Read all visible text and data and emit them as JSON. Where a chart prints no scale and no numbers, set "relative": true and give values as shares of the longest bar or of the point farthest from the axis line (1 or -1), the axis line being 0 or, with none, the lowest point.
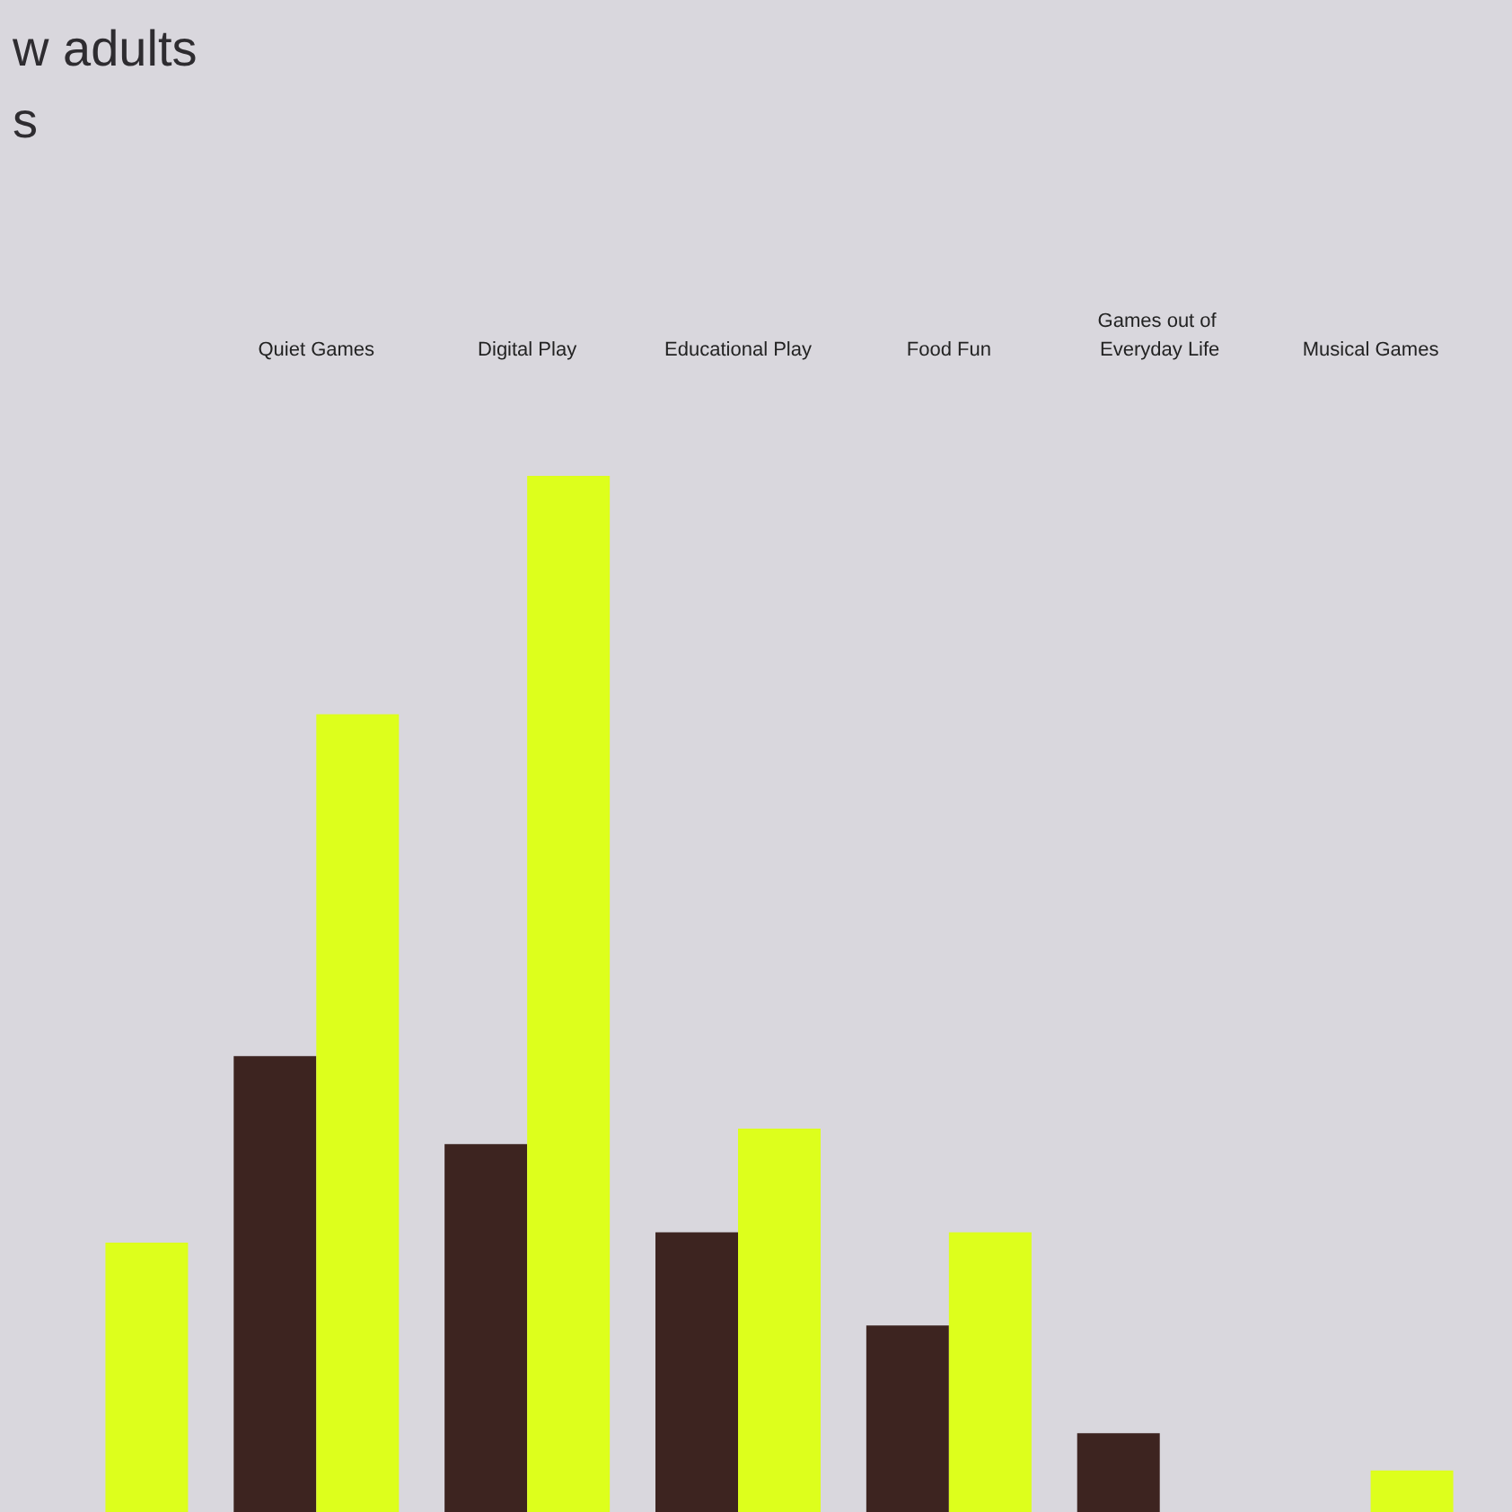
{
  "chart_data": {
    "type": "bar",
    "title": "w adults\ns",
    "categories": [
      null,
      "Quiet Games",
      "Digital Play",
      "Educational Play",
      "Food Fun",
      "Games out of Everyday Life",
      "Musical Games"
    ],
    "relative": true,
    "series": [
      {
        "color": "#3d2420",
        "values": [
          null,
          0.44,
          0.355,
          0.27,
          0.18,
          0.076,
          null
        ]
      },
      {
        "color": "#ddff1c",
        "values": [
          0.26,
          0.77,
          1,
          0.37,
          0.27,
          null,
          0.04
        ]
      }
    ]
  }
}
